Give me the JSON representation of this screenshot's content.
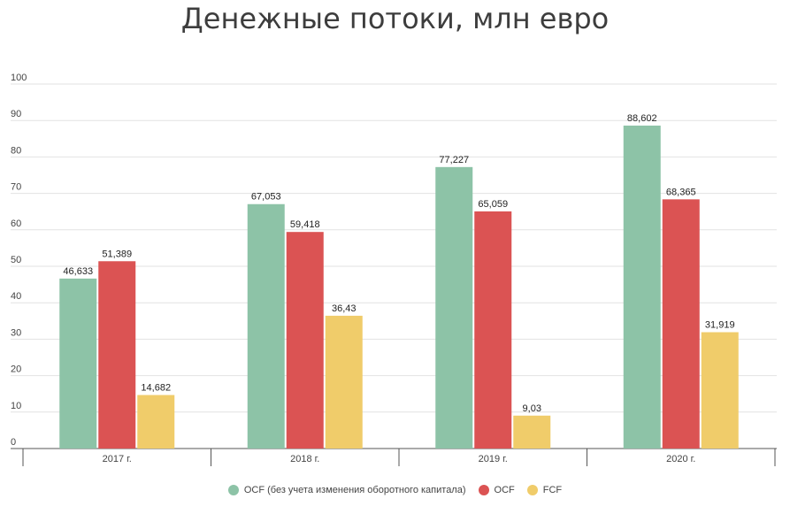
{
  "chart_data": {
    "type": "bar",
    "title": "Денежные потоки, млн евро",
    "categories": [
      "2017 г.",
      "2018 г.",
      "2019 г.",
      "2020 г."
    ],
    "series": [
      {
        "name": "OCF (без учета изменения оборотного капитала)",
        "color": "#8dc3a7",
        "values": [
          46.633,
          67.053,
          77.227,
          88.602
        ],
        "labels": [
          "46,633",
          "67,053",
          "77,227",
          "88,602"
        ]
      },
      {
        "name": "OCF",
        "color": "#db5353",
        "values": [
          51.389,
          59.418,
          65.059,
          68.365
        ],
        "labels": [
          "51,389",
          "59,418",
          "65,059",
          "68,365"
        ]
      },
      {
        "name": "FCF",
        "color": "#f0cc6a",
        "values": [
          14.682,
          36.43,
          9.03,
          31.919
        ],
        "labels": [
          "14,682",
          "36,43",
          "9,03",
          "31,919"
        ]
      }
    ],
    "ylim": [
      0,
      100
    ],
    "yticks": [
      "0",
      "10",
      "20",
      "30",
      "40",
      "50",
      "60",
      "70",
      "80",
      "90",
      "100"
    ],
    "grid": true,
    "legend_position": "bottom"
  }
}
